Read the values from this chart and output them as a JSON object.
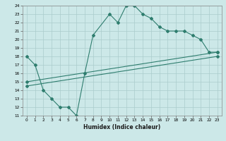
{
  "xlabel": "Humidex (Indice chaleur)",
  "xlim": [
    -0.5,
    23.5
  ],
  "ylim": [
    11,
    24
  ],
  "xticks": [
    0,
    1,
    2,
    3,
    4,
    5,
    6,
    7,
    8,
    9,
    10,
    11,
    12,
    13,
    14,
    15,
    16,
    17,
    18,
    19,
    20,
    21,
    22,
    23
  ],
  "yticks": [
    11,
    12,
    13,
    14,
    15,
    16,
    17,
    18,
    19,
    20,
    21,
    22,
    23,
    24
  ],
  "line_color": "#2e7d6e",
  "bg_color": "#cce8e8",
  "grid_color": "#aacccc",
  "lines": [
    {
      "x": [
        0,
        1,
        2,
        3,
        4,
        5,
        6,
        7,
        8,
        10,
        11,
        12,
        13,
        14,
        15,
        16,
        17,
        18,
        19,
        20,
        21,
        22,
        23
      ],
      "y": [
        18,
        17,
        14,
        13,
        12,
        12,
        11,
        16,
        20.5,
        23,
        22,
        24,
        24,
        23,
        22.5,
        21.5,
        21,
        21,
        21,
        20.5,
        20,
        18.5,
        18.5
      ]
    },
    {
      "x": [
        0,
        23
      ],
      "y": [
        15.0,
        18.5
      ]
    },
    {
      "x": [
        0,
        23
      ],
      "y": [
        14.5,
        18.0
      ]
    }
  ]
}
